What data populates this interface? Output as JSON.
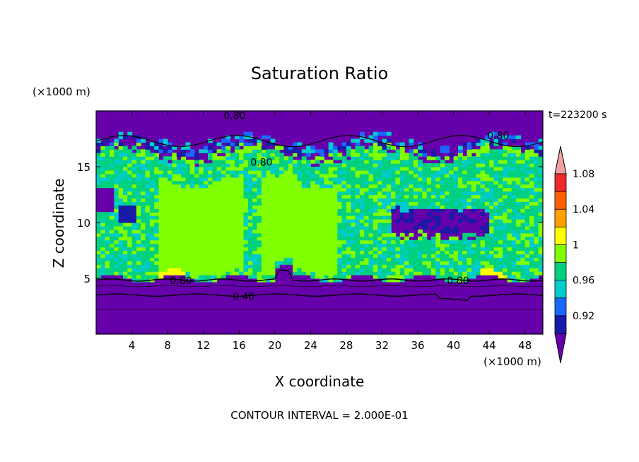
{
  "chart_data": {
    "type": "heatmap",
    "title": "Saturation Ratio",
    "xlabel": "X coordinate",
    "ylabel": "Z coordinate",
    "x_unit": "(×1000 m)",
    "y_unit": "(×1000 m)",
    "time_label": "t=223200 s",
    "footer": "CONTOUR INTERVAL = 2.000E-01",
    "xlim": [
      0,
      50
    ],
    "ylim": [
      0,
      20
    ],
    "x_ticks": [
      4,
      8,
      12,
      16,
      20,
      24,
      28,
      32,
      36,
      40,
      44,
      48
    ],
    "y_ticks": [
      5,
      10,
      15
    ],
    "contour_labels": [
      {
        "text": "0.80",
        "x": 15.5,
        "z": 19.6
      },
      {
        "text": "0.80",
        "x": 18.5,
        "z": 15.4
      },
      {
        "text": "0.80",
        "x": 45.0,
        "z": 17.8
      },
      {
        "text": "0.80",
        "x": 9.5,
        "z": 4.8
      },
      {
        "text": "0.80",
        "x": 40.5,
        "z": 4.8
      },
      {
        "text": "0.40",
        "x": 16.5,
        "z": 3.4
      }
    ],
    "colorbar": {
      "tick_labels": [
        "1.08",
        "1.04",
        "1",
        "0.96",
        "0.92"
      ],
      "levels": [
        0.9,
        0.92,
        0.94,
        0.96,
        0.98,
        1.0,
        1.02,
        1.04,
        1.06,
        1.08,
        1.1
      ],
      "colors": [
        "#6600aa",
        "#1a1aa8",
        "#1a66ff",
        "#00cccc",
        "#00d080",
        "#80ff00",
        "#ffff00",
        "#ffa000",
        "#ff6000",
        "#ee2a2a",
        "#f0a0a0"
      ],
      "extend": "both"
    },
    "regions": {
      "background_level": 0.8,
      "upper_dry_layer_z": [
        17.0,
        20.0
      ],
      "moist_layer_z": [
        5.2,
        16.5
      ],
      "lower_dry_layer_z": [
        0,
        5.0
      ],
      "saturated_patches_x": [
        [
          7,
          16.5
        ],
        [
          18.5,
          27
        ]
      ],
      "dry_intrusion": {
        "x": [
          33,
          44
        ],
        "z": [
          8.8,
          11.2
        ]
      }
    }
  }
}
